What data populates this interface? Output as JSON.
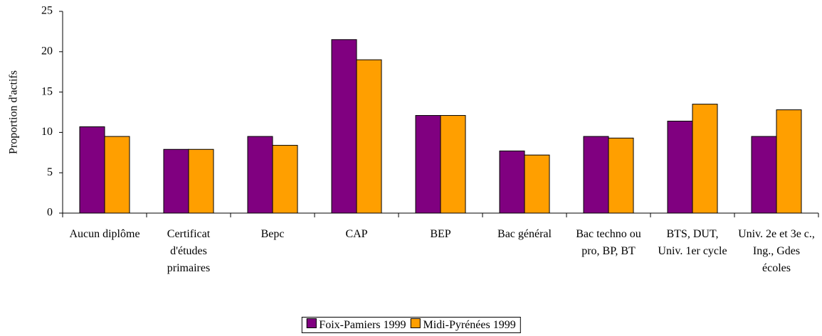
{
  "chart_data": {
    "type": "bar",
    "y_label": "Proportion d'actifs",
    "categories": [
      "Aucun diplôme",
      "Certificat d'études primaires",
      "Bepc",
      "CAP",
      "BEP",
      "Bac général",
      "Bac techno ou pro, BP, BT",
      "BTS, DUT, Univ. 1er cycle",
      "Univ. 2e et 3e c., Ing., Gdes écoles"
    ],
    "series": [
      {
        "name": "Foix-Pamiers 1999",
        "color": "#800080",
        "values": [
          10.7,
          7.9,
          9.5,
          21.5,
          12.1,
          7.7,
          9.5,
          11.4,
          9.5
        ]
      },
      {
        "name": "Midi-Pyrénées 1999",
        "color": "#ff9f00",
        "values": [
          9.5,
          7.9,
          8.4,
          19.0,
          12.1,
          7.2,
          9.3,
          13.5,
          12.8
        ]
      }
    ],
    "ylim": [
      0,
      25
    ],
    "yticks": [
      0,
      5,
      10,
      15,
      20,
      25
    ],
    "grid": false,
    "legend": "bottom"
  }
}
